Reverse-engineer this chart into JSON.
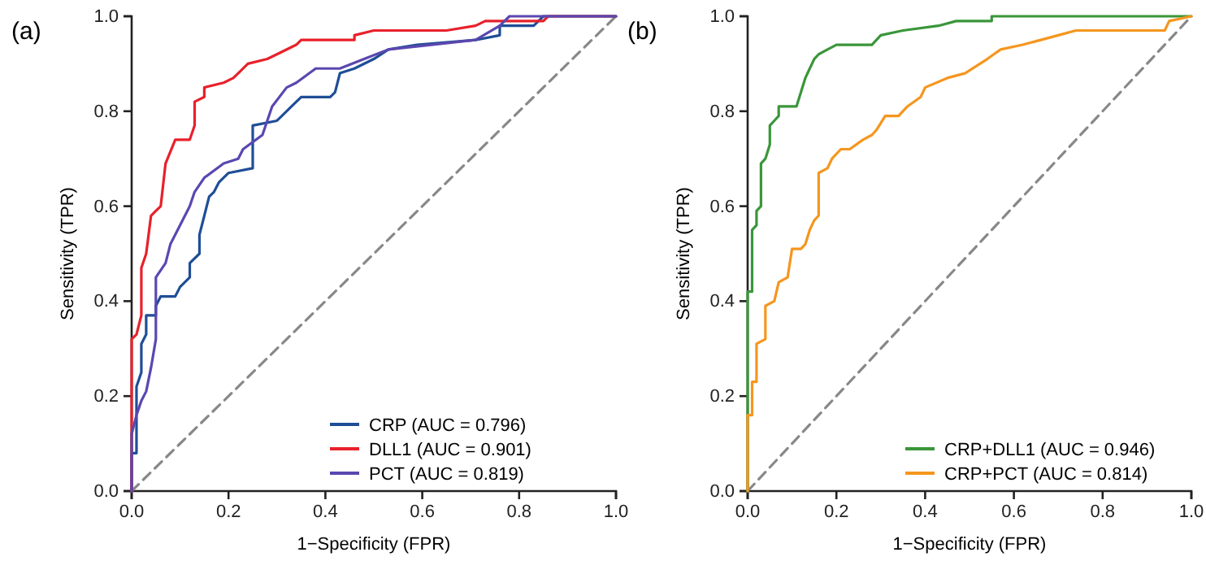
{
  "chart_data": [
    {
      "type": "line",
      "title": "(a)",
      "xlabel": "1−Specificity (FPR)",
      "ylabel": "Sensitivity (TPR)",
      "xlim": [
        0,
        1
      ],
      "ylim": [
        0,
        1
      ],
      "xticks": [
        {
          "value": 0,
          "label": "0.0"
        },
        {
          "value": 0.2,
          "label": "0.2"
        },
        {
          "value": 0.4,
          "label": "0.4"
        },
        {
          "value": 0.6,
          "label": "0.6"
        },
        {
          "value": 0.8,
          "label": "0.8"
        },
        {
          "value": 1,
          "label": "1.0"
        }
      ],
      "yticks": [
        {
          "value": 0,
          "label": "0.0"
        },
        {
          "value": 0.2,
          "label": "0.2"
        },
        {
          "value": 0.4,
          "label": "0.4"
        },
        {
          "value": 0.6,
          "label": "0.6"
        },
        {
          "value": 0.8,
          "label": "0.8"
        },
        {
          "value": 1,
          "label": "1.0"
        }
      ],
      "grid": false,
      "legend": "bottom right",
      "marker": "none",
      "series": [
        {
          "color": "#888888",
          "line_style": "dashed",
          "x": [
            0,
            1
          ],
          "values": [
            0,
            1
          ]
        },
        {
          "name": "CRP (AUC = 0.796)",
          "color": "#1f4e96",
          "line_style": "solid",
          "x": [
            0,
            0,
            0.01,
            0.01,
            0.02,
            0.02,
            0.03,
            0.03,
            0.05,
            0.05,
            0.06,
            0.09,
            0.1,
            0.12,
            0.12,
            0.14,
            0.14,
            0.15,
            0.16,
            0.17,
            0.18,
            0.2,
            0.25,
            0.25,
            0.3,
            0.31,
            0.33,
            0.35,
            0.41,
            0.42,
            0.43,
            0.46,
            0.5,
            0.53,
            0.59,
            0.71,
            0.76,
            0.76,
            0.83,
            0.85,
            1
          ],
          "values": [
            0,
            0.08,
            0.08,
            0.22,
            0.25,
            0.31,
            0.33,
            0.37,
            0.37,
            0.39,
            0.41,
            0.41,
            0.43,
            0.45,
            0.48,
            0.5,
            0.54,
            0.58,
            0.62,
            0.63,
            0.65,
            0.67,
            0.68,
            0.77,
            0.78,
            0.79,
            0.81,
            0.83,
            0.83,
            0.84,
            0.88,
            0.89,
            0.91,
            0.93,
            0.94,
            0.95,
            0.96,
            0.98,
            0.98,
            1,
            1
          ]
        },
        {
          "name": "DLL1 (AUC = 0.901)",
          "color": "#e8212b",
          "line_style": "solid",
          "x": [
            0,
            0,
            0,
            0.01,
            0.02,
            0.02,
            0.03,
            0.04,
            0.05,
            0.06,
            0.07,
            0.09,
            0.12,
            0.13,
            0.13,
            0.15,
            0.15,
            0.19,
            0.21,
            0.22,
            0.24,
            0.28,
            0.3,
            0.34,
            0.35,
            0.46,
            0.46,
            0.5,
            0.65,
            0.71,
            0.73,
            0.85,
            0.86,
            1
          ],
          "values": [
            0,
            0.15,
            0.32,
            0.33,
            0.37,
            0.47,
            0.5,
            0.58,
            0.59,
            0.6,
            0.69,
            0.74,
            0.74,
            0.77,
            0.82,
            0.83,
            0.85,
            0.86,
            0.87,
            0.88,
            0.9,
            0.91,
            0.92,
            0.94,
            0.95,
            0.95,
            0.96,
            0.97,
            0.97,
            0.98,
            0.99,
            0.99,
            1,
            1
          ]
        },
        {
          "name": "PCT (AUC = 0.819)",
          "color": "#5b47b0",
          "line_style": "solid",
          "x": [
            0,
            0,
            0.01,
            0.02,
            0.03,
            0.04,
            0.05,
            0.05,
            0.07,
            0.08,
            0.1,
            0.12,
            0.13,
            0.15,
            0.19,
            0.22,
            0.23,
            0.27,
            0.29,
            0.32,
            0.34,
            0.38,
            0.43,
            0.48,
            0.53,
            0.71,
            0.76,
            0.78,
            1
          ],
          "values": [
            0,
            0.12,
            0.16,
            0.19,
            0.21,
            0.26,
            0.32,
            0.45,
            0.48,
            0.52,
            0.56,
            0.6,
            0.63,
            0.66,
            0.69,
            0.7,
            0.72,
            0.75,
            0.81,
            0.85,
            0.86,
            0.89,
            0.89,
            0.91,
            0.93,
            0.95,
            0.98,
            1,
            1
          ]
        }
      ]
    },
    {
      "type": "line",
      "title": "(b)",
      "xlabel": "1−Specificity (FPR)",
      "ylabel": "Sensitivity (TPR)",
      "xlim": [
        0,
        1
      ],
      "ylim": [
        0,
        1
      ],
      "xticks": [
        {
          "value": 0,
          "label": "0.0"
        },
        {
          "value": 0.2,
          "label": "0.2"
        },
        {
          "value": 0.4,
          "label": "0.4"
        },
        {
          "value": 0.6,
          "label": "0.6"
        },
        {
          "value": 0.8,
          "label": "0.8"
        },
        {
          "value": 1,
          "label": "1.0"
        }
      ],
      "yticks": [
        {
          "value": 0,
          "label": "0.0"
        },
        {
          "value": 0.2,
          "label": "0.2"
        },
        {
          "value": 0.4,
          "label": "0.4"
        },
        {
          "value": 0.6,
          "label": "0.6"
        },
        {
          "value": 0.8,
          "label": "0.8"
        },
        {
          "value": 1,
          "label": "1.0"
        }
      ],
      "grid": false,
      "legend": "bottom right",
      "marker": "none",
      "series": [
        {
          "color": "#888888",
          "line_style": "dashed",
          "x": [
            0,
            1
          ],
          "values": [
            0,
            1
          ]
        },
        {
          "name": "CRP+DLL1 (AUC = 0.946)",
          "color": "#3a963a",
          "line_style": "solid",
          "x": [
            0,
            0,
            0,
            0.01,
            0.01,
            0.02,
            0.02,
            0.03,
            0.03,
            0.04,
            0.05,
            0.05,
            0.06,
            0.07,
            0.07,
            0.11,
            0.12,
            0.13,
            0.14,
            0.15,
            0.16,
            0.18,
            0.2,
            0.28,
            0.3,
            0.35,
            0.43,
            0.47,
            0.55,
            0.55,
            1
          ],
          "values": [
            0,
            0.17,
            0.42,
            0.42,
            0.55,
            0.56,
            0.59,
            0.6,
            0.69,
            0.7,
            0.73,
            0.77,
            0.78,
            0.79,
            0.81,
            0.81,
            0.84,
            0.87,
            0.89,
            0.91,
            0.92,
            0.93,
            0.94,
            0.94,
            0.96,
            0.97,
            0.98,
            0.99,
            0.99,
            1,
            1
          ]
        },
        {
          "name": "CRP+PCT (AUC = 0.814)",
          "color": "#f5961e",
          "line_style": "solid",
          "x": [
            0,
            0,
            0.01,
            0.01,
            0.02,
            0.02,
            0.04,
            0.04,
            0.06,
            0.07,
            0.09,
            0.1,
            0.12,
            0.13,
            0.14,
            0.15,
            0.16,
            0.16,
            0.18,
            0.19,
            0.21,
            0.23,
            0.26,
            0.28,
            0.29,
            0.31,
            0.34,
            0.36,
            0.39,
            0.4,
            0.45,
            0.49,
            0.54,
            0.57,
            0.62,
            0.7,
            0.74,
            0.94,
            0.95,
            1
          ],
          "values": [
            0,
            0.16,
            0.16,
            0.23,
            0.23,
            0.31,
            0.32,
            0.39,
            0.4,
            0.44,
            0.45,
            0.51,
            0.51,
            0.52,
            0.55,
            0.57,
            0.58,
            0.67,
            0.68,
            0.7,
            0.72,
            0.72,
            0.74,
            0.75,
            0.76,
            0.79,
            0.79,
            0.81,
            0.83,
            0.85,
            0.87,
            0.88,
            0.91,
            0.93,
            0.94,
            0.96,
            0.97,
            0.97,
            0.99,
            1
          ]
        }
      ]
    }
  ]
}
